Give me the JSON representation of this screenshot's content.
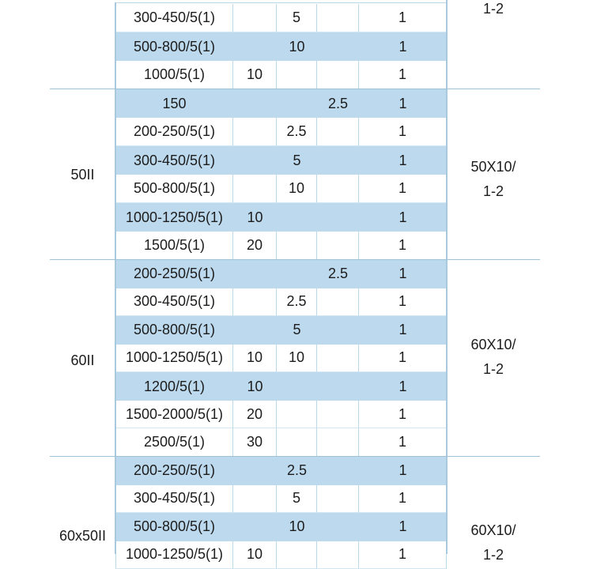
{
  "table": {
    "sections": [
      {
        "model": "",
        "dimension": [
          "1-2"
        ],
        "rows": [
          {
            "spec": "300-450/5(1)",
            "c1": "",
            "c2": "5",
            "c3": "",
            "count": "1",
            "shade": "white"
          },
          {
            "spec": "500-800/5(1)",
            "c1": "",
            "c2": "10",
            "c3": "",
            "count": "1",
            "shade": "blue"
          },
          {
            "spec": "1000/5(1)",
            "c1": "10",
            "c2": "",
            "c3": "",
            "count": "1",
            "shade": "white"
          }
        ]
      },
      {
        "model": "50II",
        "dimension": [
          "50X10/",
          "1-2"
        ],
        "rows": [
          {
            "spec": "150",
            "c1": "",
            "c2": "",
            "c3": "2.5",
            "count": "1",
            "shade": "blue"
          },
          {
            "spec": "200-250/5(1)",
            "c1": "",
            "c2": "2.5",
            "c3": "",
            "count": "1",
            "shade": "white"
          },
          {
            "spec": "300-450/5(1)",
            "c1": "",
            "c2": "5",
            "c3": "",
            "count": "1",
            "shade": "blue"
          },
          {
            "spec": "500-800/5(1)",
            "c1": "",
            "c2": "10",
            "c3": "",
            "count": "1",
            "shade": "white"
          },
          {
            "spec": "1000-1250/5(1)",
            "c1": "10",
            "c2": "",
            "c3": "",
            "count": "1",
            "shade": "blue"
          },
          {
            "spec": "1500/5(1)",
            "c1": "20",
            "c2": "",
            "c3": "",
            "count": "1",
            "shade": "white"
          }
        ]
      },
      {
        "model": "60II",
        "dimension": [
          "60X10/",
          "1-2"
        ],
        "rows": [
          {
            "spec": "200-250/5(1)",
            "c1": "",
            "c2": "",
            "c3": "2.5",
            "count": "1",
            "shade": "blue"
          },
          {
            "spec": "300-450/5(1)",
            "c1": "",
            "c2": "2.5",
            "c3": "",
            "count": "1",
            "shade": "white"
          },
          {
            "spec": "500-800/5(1)",
            "c1": "",
            "c2": "5",
            "c3": "",
            "count": "1",
            "shade": "blue"
          },
          {
            "spec": "1000-1250/5(1)",
            "c1": "10",
            "c2": "10",
            "c3": "",
            "count": "1",
            "shade": "white"
          },
          {
            "spec": "1200/5(1)",
            "c1": "10",
            "c2": "",
            "c3": "",
            "count": "1",
            "shade": "blue"
          },
          {
            "spec": "1500-2000/5(1)",
            "c1": "20",
            "c2": "",
            "c3": "",
            "count": "1",
            "shade": "white"
          },
          {
            "spec": "2500/5(1)",
            "c1": "30",
            "c2": "",
            "c3": "",
            "count": "1",
            "shade": "white"
          }
        ]
      },
      {
        "model": "60x50II",
        "dimension": [
          "60X10/",
          "1-2"
        ],
        "rows": [
          {
            "spec": "200-250/5(1)",
            "c1": "",
            "c2": "2.5",
            "c3": "",
            "count": "1",
            "shade": "blue"
          },
          {
            "spec": "300-450/5(1)",
            "c1": "",
            "c2": "5",
            "c3": "",
            "count": "1",
            "shade": "white"
          },
          {
            "spec": "500-800/5(1)",
            "c1": "",
            "c2": "10",
            "c3": "",
            "count": "1",
            "shade": "blue"
          },
          {
            "spec": "1000-1250/5(1)",
            "c1": "10",
            "c2": "",
            "c3": "",
            "count": "1",
            "shade": "white"
          }
        ]
      }
    ]
  },
  "colors": {
    "row_highlight": "#bdd9ee",
    "grid_line": "#bcd9ea",
    "section_divider": "#9fc2d6",
    "text": "#1c1c1c"
  }
}
